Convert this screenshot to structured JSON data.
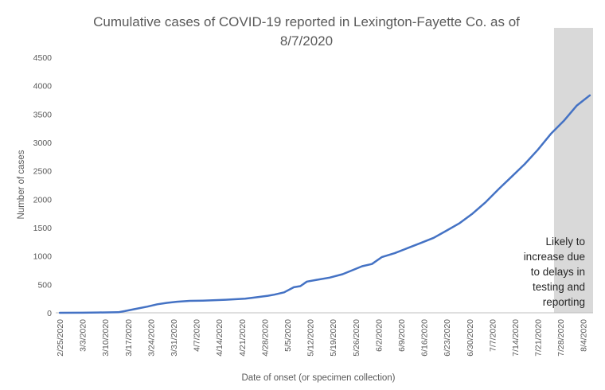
{
  "chart_data": {
    "type": "line",
    "title_lines": [
      "Cumulative cases of COVID-19 reported in Lexington-Fayette Co.  as of",
      "8/7/2020"
    ],
    "xlabel": "Date of onset (or specimen collection)",
    "ylabel": "Number of cases",
    "ylim": [
      0,
      4500
    ],
    "yticks": [
      0,
      500,
      1000,
      1500,
      2000,
      2500,
      3000,
      3500,
      4000,
      4500
    ],
    "xlim": [
      "2020-02-25",
      "2020-08-07"
    ],
    "xtick_labels": [
      "2/25/2020",
      "3/3/2020",
      "3/10/2020",
      "3/17/2020",
      "3/24/2020",
      "3/31/2020",
      "4/7/2020",
      "4/14/2020",
      "4/21/2020",
      "4/28/2020",
      "5/5/2020",
      "5/12/2020",
      "5/19/2020",
      "5/26/2020",
      "6/2/2020",
      "6/9/2020",
      "6/16/2020",
      "6/23/2020",
      "6/30/2020",
      "7/7/2020",
      "7/14/2020",
      "7/21/2020",
      "7/28/2020",
      "8/4/2020"
    ],
    "grid": false,
    "series": [
      {
        "color": "#4472C4",
        "x": [
          "2020-02-25",
          "2020-03-03",
          "2020-03-08",
          "2020-03-14",
          "2020-03-16",
          "2020-03-19",
          "2020-03-23",
          "2020-03-26",
          "2020-03-29",
          "2020-04-01",
          "2020-04-05",
          "2020-04-09",
          "2020-04-16",
          "2020-04-22",
          "2020-04-25",
          "2020-04-29",
          "2020-05-01",
          "2020-05-04",
          "2020-05-07",
          "2020-05-09",
          "2020-05-11",
          "2020-05-14",
          "2020-05-18",
          "2020-05-22",
          "2020-05-25",
          "2020-05-28",
          "2020-05-31",
          "2020-06-03",
          "2020-06-07",
          "2020-06-11",
          "2020-06-15",
          "2020-06-19",
          "2020-06-23",
          "2020-06-27",
          "2020-07-01",
          "2020-07-05",
          "2020-07-09",
          "2020-07-13",
          "2020-07-17",
          "2020-07-21",
          "2020-07-25",
          "2020-07-29",
          "2020-08-02",
          "2020-08-06"
        ],
        "values": [
          0,
          2,
          5,
          10,
          30,
          65,
          110,
          150,
          175,
          195,
          210,
          215,
          230,
          250,
          270,
          300,
          320,
          360,
          450,
          470,
          550,
          580,
          620,
          680,
          750,
          820,
          860,
          980,
          1050,
          1140,
          1230,
          1320,
          1450,
          1580,
          1750,
          1950,
          2180,
          2400,
          2620,
          2870,
          3150,
          3380,
          3650,
          3830
        ]
      }
    ],
    "shaded_region": {
      "from": "2020-07-26",
      "to": "2020-08-07",
      "color": "#D9D9D9"
    },
    "annotation_lines": [
      "Likely to",
      "increase due",
      "to delays in",
      "testing and",
      "reporting"
    ]
  }
}
